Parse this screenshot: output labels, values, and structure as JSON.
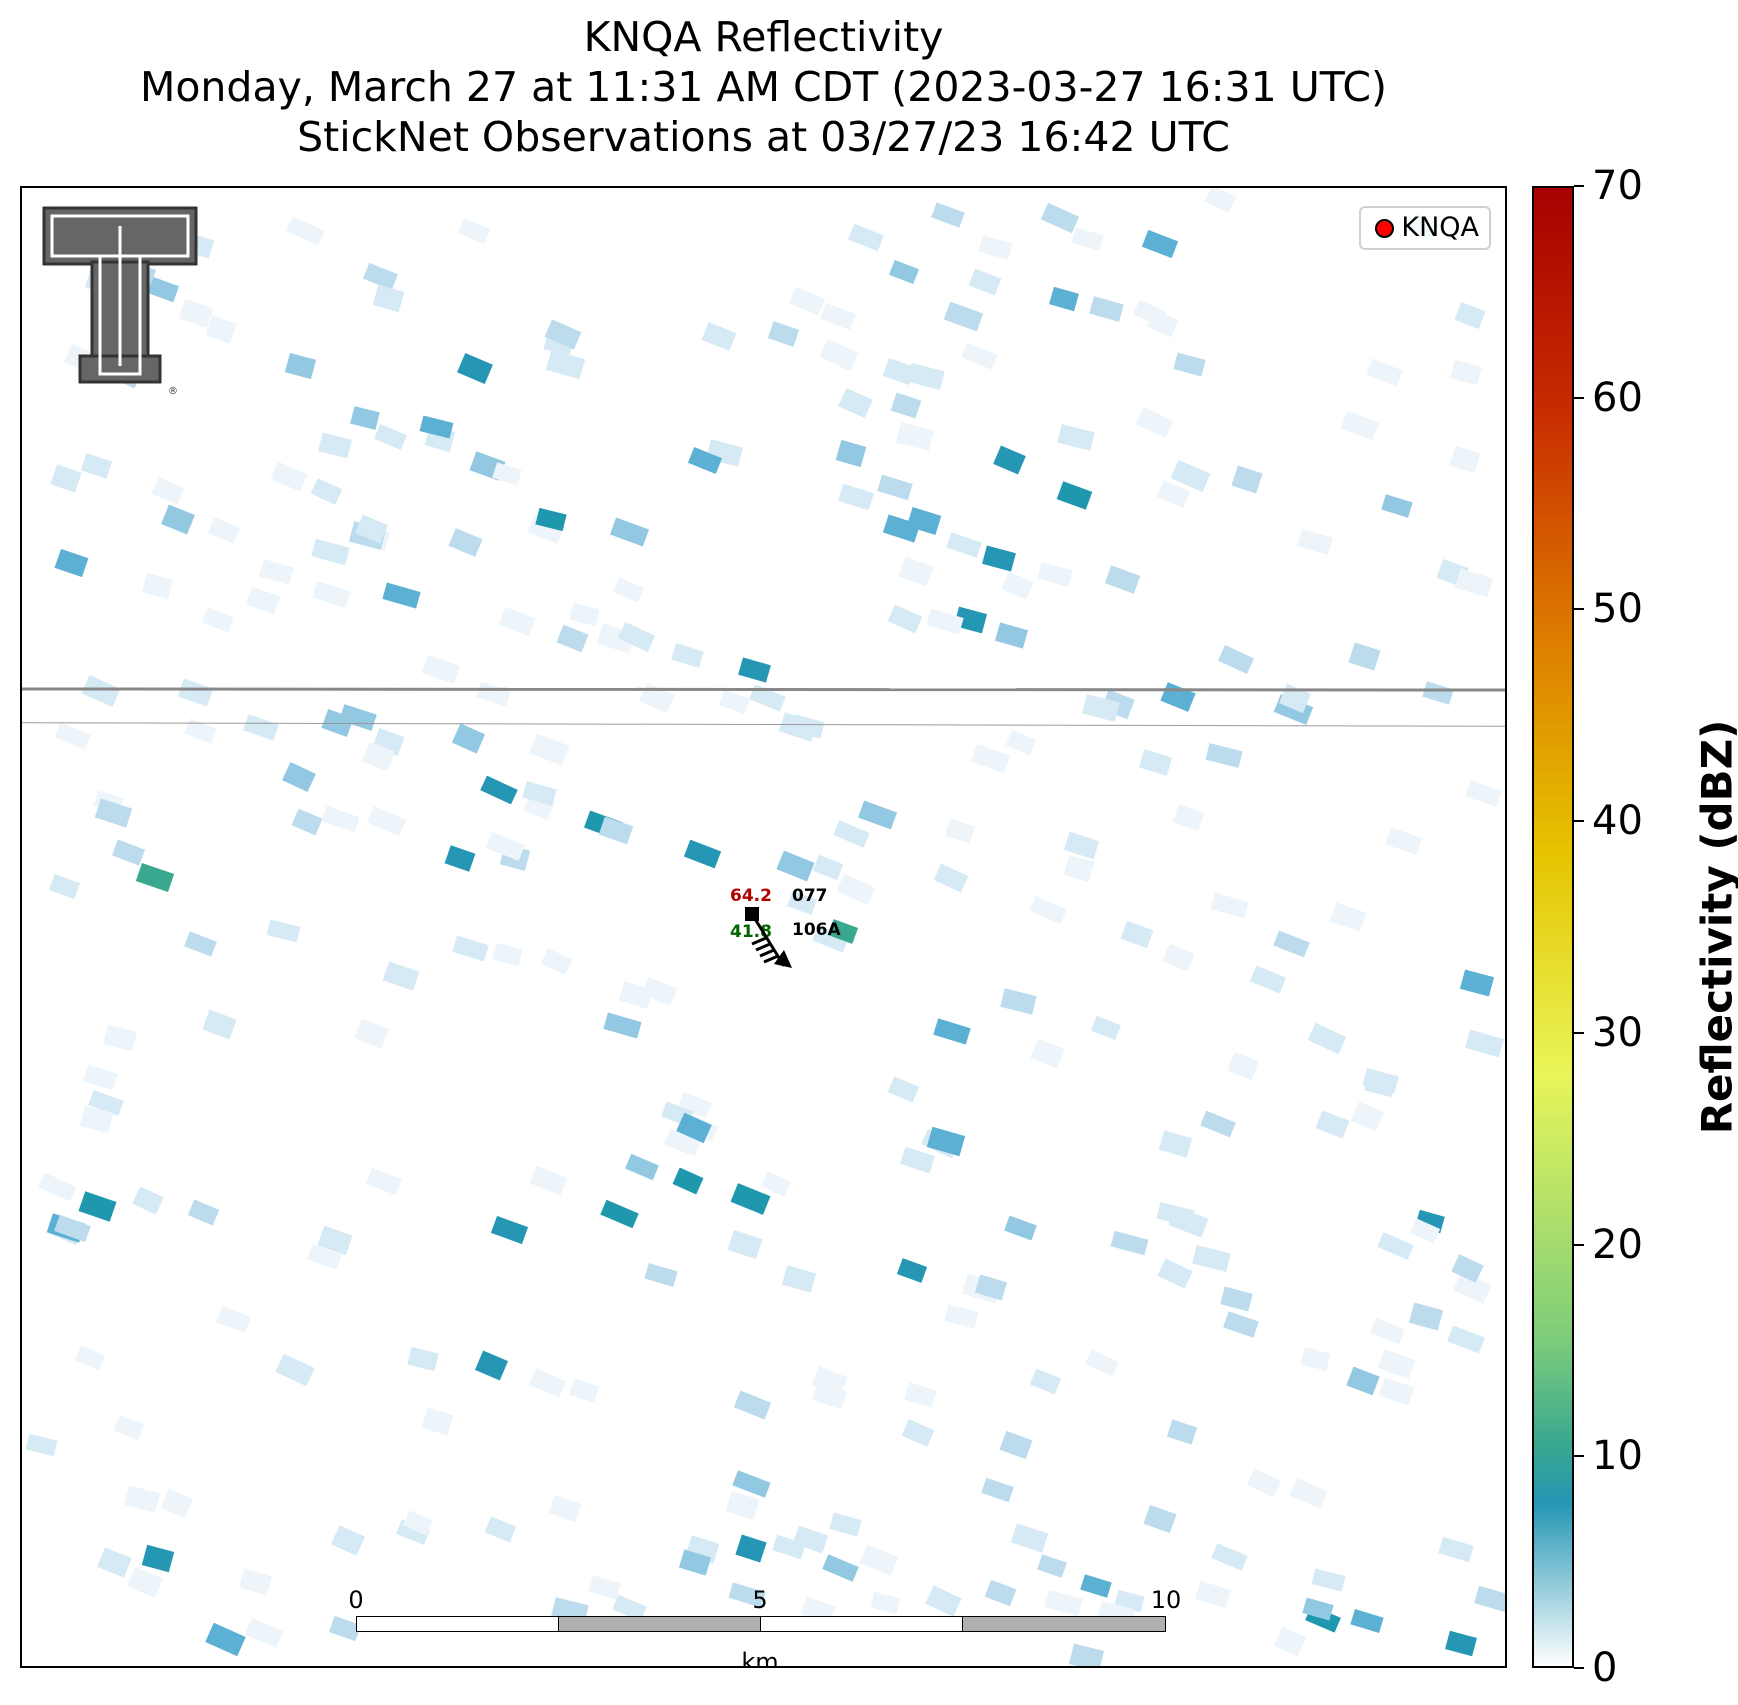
{
  "title": {
    "line1": "KNQA Reflectivity",
    "line2": "Monday, March 27 at 11:31 AM CDT (2023-03-27 16:31 UTC)",
    "line3": "StickNet Observations at 03/27/23 16:42 UTC"
  },
  "legend": {
    "label": "KNQA",
    "marker_color": "#ff0000"
  },
  "logo": {
    "icon": "texas-tech-double-t-logo-icon",
    "mark": "®"
  },
  "station": {
    "temperature": "64.2",
    "temperature_color": "#b20000",
    "dewpoint": "41.8",
    "dewpoint_color": "#006400",
    "pressure_code": "077",
    "station_id": "106A",
    "icon": "wind-barb-icon"
  },
  "scalebar": {
    "ticks": [
      "0",
      "5",
      "10"
    ],
    "unit": "km"
  },
  "colorbar": {
    "label": "Reflectivity (dBZ)",
    "ticks": [
      "0",
      "10",
      "20",
      "30",
      "40",
      "50",
      "60",
      "70"
    ],
    "min": 0,
    "max": 70,
    "colors": [
      "#ffffff",
      "#2596b4",
      "#39a88f",
      "#7ccc7a",
      "#e8f559",
      "#e6c400",
      "#dd7a00",
      "#c72c00",
      "#a80000"
    ]
  },
  "roads": [
    {
      "color": "#888888"
    },
    {
      "color": "#999999"
    }
  ]
}
